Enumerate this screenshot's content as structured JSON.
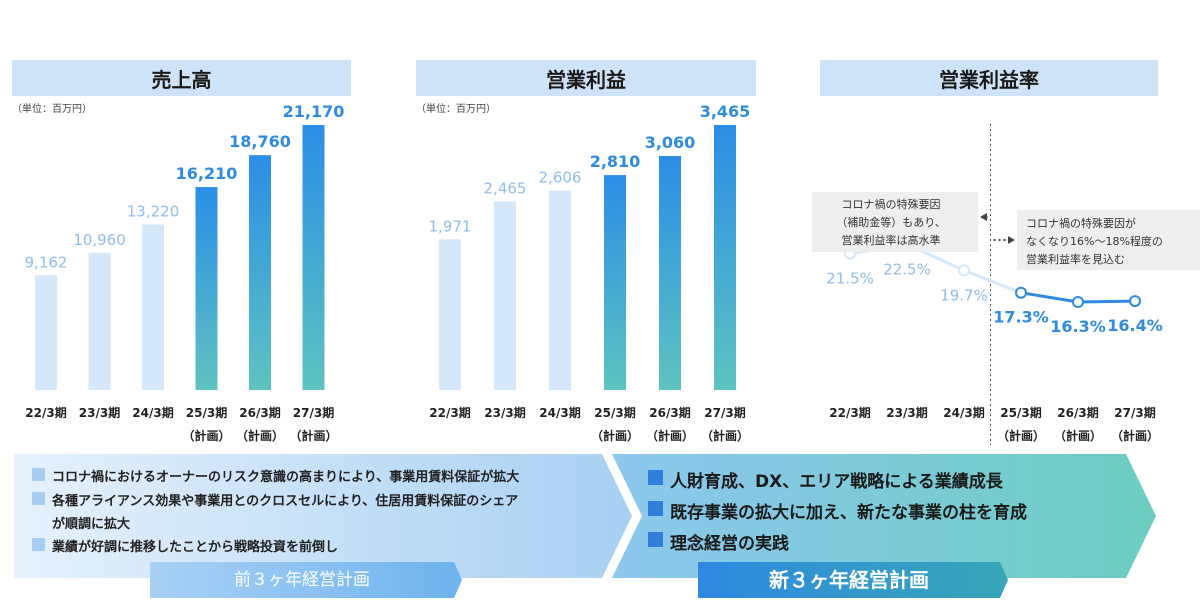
{
  "chart_data": [
    {
      "type": "bar",
      "title": "売上高",
      "unit_note": "（単位：百万円）",
      "categories": [
        "22/3期",
        "23/3期",
        "24/3期",
        "25/3期",
        "26/3期",
        "27/3期"
      ],
      "category_subs": [
        "",
        "",
        "",
        "（計画）",
        "（計画）",
        "（計画）"
      ],
      "values": [
        9162,
        10960,
        13220,
        16210,
        18760,
        21170
      ],
      "labels": [
        "9,162",
        "10,960",
        "13,220",
        "16,210",
        "18,760",
        "21,170"
      ],
      "ylim": [
        0,
        21170
      ],
      "grid": false
    },
    {
      "type": "bar",
      "title": "営業利益",
      "unit_note": "（単位：百万円）",
      "categories": [
        "22/3期",
        "23/3期",
        "24/3期",
        "25/3期",
        "26/3期",
        "27/3期"
      ],
      "category_subs": [
        "",
        "",
        "",
        "（計画）",
        "（計画）",
        "（計画）"
      ],
      "values": [
        1971,
        2465,
        2606,
        2810,
        3060,
        3465
      ],
      "labels": [
        "1,971",
        "2,465",
        "2,606",
        "2,810",
        "3,060",
        "3,465"
      ],
      "ylim": [
        0,
        3465
      ],
      "grid": false
    },
    {
      "type": "line",
      "title": "営業利益率",
      "categories": [
        "22/3期",
        "23/3期",
        "24/3期",
        "25/3期",
        "26/3期",
        "27/3期"
      ],
      "category_subs": [
        "",
        "",
        "",
        "（計画）",
        "（計画）",
        "（計画）"
      ],
      "values": [
        21.5,
        22.5,
        19.7,
        17.3,
        16.3,
        16.4
      ],
      "labels": [
        "21.5%",
        "22.5%",
        "19.7%",
        "17.3%",
        "16.3%",
        "16.4%"
      ],
      "annotations": [
        [
          "コロナ禍の特殊要因",
          "（補助金等）もあり、",
          "営業利益率は高水準"
        ],
        [
          "コロナ禍の特殊要因が",
          "なくなり16%～18%程度の",
          "営業利益率を見込む"
        ]
      ],
      "grid": false
    }
  ],
  "colors": {
    "past_bar": "#d4e7fb",
    "plan_top": "#2b8ee6",
    "plan_bottom": "#5ec3c0",
    "past_text": "#8fbde9",
    "plan_text": "#2f8be0",
    "header_bg": "#cfe3f8"
  },
  "bottom": {
    "left_bullets": [
      "コロナ禍におけるオーナーのリスク意識の高まりにより、事業用賃料保証が拡大",
      "各種アライアンス効果や事業用とのクロスセルにより、住居用賃料保証のシェア",
      "業績が好調に推移したことから戦略投資を前倒し"
    ],
    "left_bullet2_cont": "が順調に拡大",
    "left_label": "前３ヶ年経営計画",
    "right_bullets": [
      "人財育成、DX、エリア戦略による業績成長",
      "既存事業の拡大に加え、新たな事業の柱を育成",
      "理念経営の実践"
    ],
    "right_label": "新３ヶ年経営計画"
  }
}
